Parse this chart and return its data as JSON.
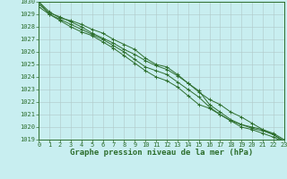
{
  "title": "Graphe pression niveau de la mer (hPa)",
  "bg_color": "#c8eef0",
  "grid_color": "#b0c8c8",
  "line_color": "#2d6e2d",
  "marker_color": "#2d6e2d",
  "x_values": [
    0,
    1,
    2,
    3,
    4,
    5,
    6,
    7,
    8,
    9,
    10,
    11,
    12,
    13,
    14,
    15,
    16,
    17,
    18,
    19,
    20,
    21,
    22,
    23
  ],
  "series": [
    [
      1030.0,
      1029.2,
      1028.7,
      1028.5,
      1028.2,
      1027.8,
      1027.5,
      1027.0,
      1026.6,
      1026.2,
      1025.5,
      1025.0,
      1024.8,
      1024.2,
      1023.5,
      1022.8,
      1022.2,
      1021.8,
      1021.2,
      1020.8,
      1020.3,
      1019.8,
      1019.4,
      1018.8
    ],
    [
      1030.0,
      1029.0,
      1028.6,
      1028.2,
      1027.8,
      1027.4,
      1027.0,
      1026.5,
      1026.0,
      1025.4,
      1024.8,
      1024.5,
      1024.2,
      1023.6,
      1023.0,
      1022.4,
      1021.6,
      1021.0,
      1020.5,
      1020.0,
      1019.8,
      1019.5,
      1019.2,
      1018.8
    ],
    [
      1029.8,
      1029.1,
      1028.8,
      1028.4,
      1028.0,
      1027.5,
      1027.1,
      1026.7,
      1026.2,
      1025.8,
      1025.3,
      1024.9,
      1024.6,
      1024.1,
      1023.5,
      1022.9,
      1021.8,
      1021.2,
      1020.6,
      1020.2,
      1019.9,
      1019.7,
      1019.4,
      1018.9
    ],
    [
      1029.6,
      1029.0,
      1028.5,
      1028.0,
      1027.6,
      1027.3,
      1026.8,
      1026.3,
      1025.7,
      1025.1,
      1024.5,
      1024.0,
      1023.7,
      1023.2,
      1022.5,
      1021.8,
      1021.5,
      1021.0,
      1020.5,
      1020.2,
      1020.0,
      1019.8,
      1019.5,
      1019.0
    ]
  ],
  "ylim": [
    1019,
    1030
  ],
  "yticks": [
    1019,
    1020,
    1021,
    1022,
    1023,
    1024,
    1025,
    1026,
    1027,
    1028,
    1029,
    1030
  ],
  "xticks": [
    0,
    1,
    2,
    3,
    4,
    5,
    6,
    7,
    8,
    9,
    10,
    11,
    12,
    13,
    14,
    15,
    16,
    17,
    18,
    19,
    20,
    21,
    22,
    23
  ],
  "title_fontsize": 6.5,
  "tick_fontsize": 5.0
}
